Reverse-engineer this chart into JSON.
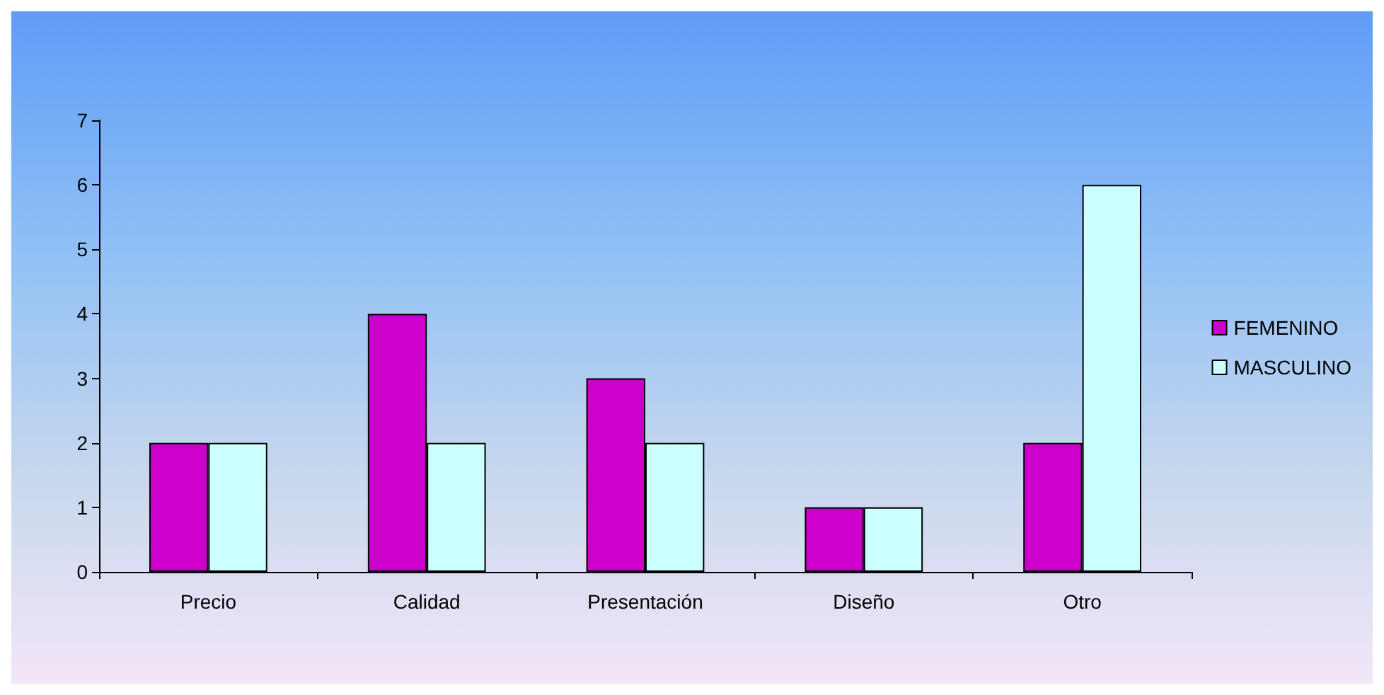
{
  "chart_data": {
    "type": "bar",
    "categories": [
      "Precio",
      "Calidad",
      "Presentación",
      "Diseño",
      "Otro"
    ],
    "series": [
      {
        "name": "FEMENINO",
        "color": "#cc00cc",
        "values": [
          2,
          4,
          3,
          1,
          2
        ]
      },
      {
        "name": "MASCULINO",
        "color": "#ccffff",
        "values": [
          2,
          2,
          2,
          1,
          6
        ]
      }
    ],
    "ylim": [
      0,
      7
    ],
    "yticks": [
      0,
      1,
      2,
      3,
      4,
      5,
      6,
      7
    ],
    "grid": false,
    "legend": "right"
  }
}
